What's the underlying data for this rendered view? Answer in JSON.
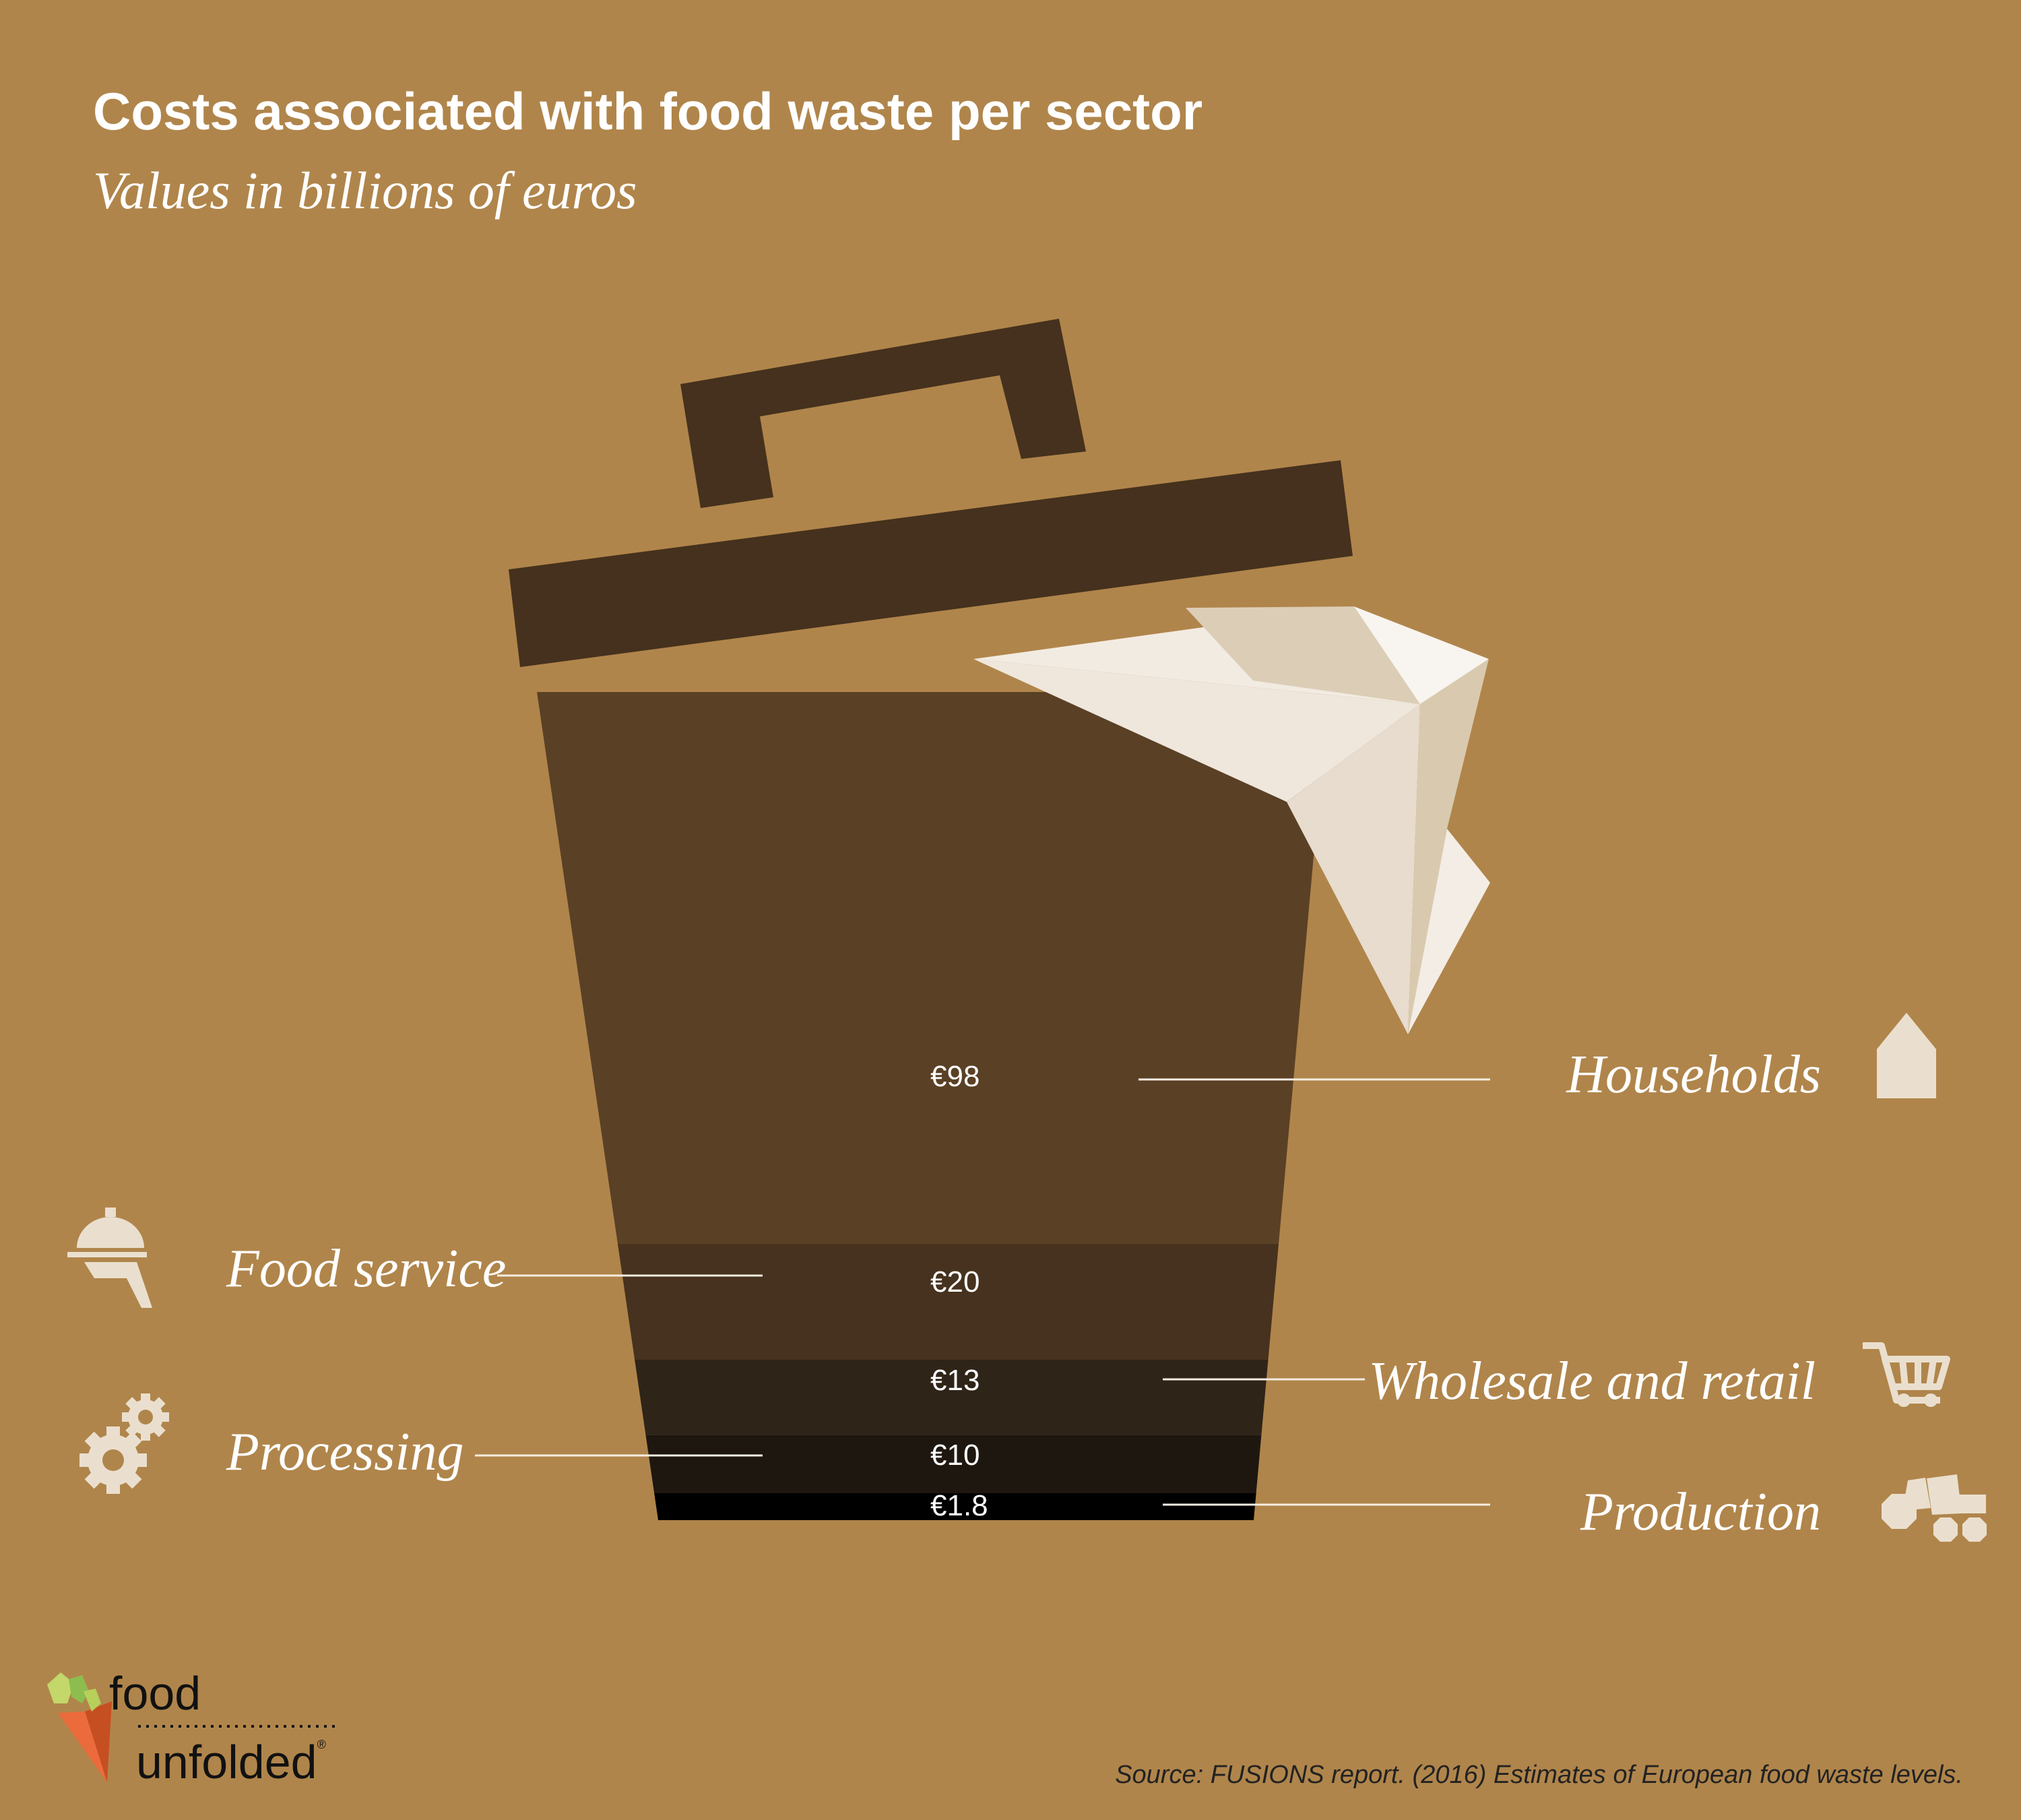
{
  "header": {
    "title": "Costs associated with food waste per sector",
    "subtitle": "Values in billions of euros"
  },
  "chart_data": {
    "type": "bar",
    "title": "Costs associated with food waste per sector",
    "subtitle": "Values in billions of euros",
    "categories": [
      "Households",
      "Food service",
      "Wholesale and retail",
      "Processing",
      "Production"
    ],
    "values": [
      98,
      20,
      13,
      10,
      1.8
    ],
    "value_labels": [
      "€98",
      "€20",
      "€13",
      "€10",
      "€1.8"
    ],
    "colors": [
      "#5a4025",
      "#46321e",
      "#2f2418",
      "#1e1710",
      "#000000"
    ],
    "icons": [
      "house-icon",
      "service-bell-icon",
      "shopping-cart-icon",
      "gears-icon",
      "tractor-icon"
    ]
  },
  "brand": {
    "line1": "food",
    "line2": "unfolded",
    "mark": "®"
  },
  "source": "Source: FUSIONS report. (2016) Estimates of European food waste levels.",
  "colors": {
    "background": "#b0854b",
    "lid": "#45311d",
    "paper": "#efe7dc",
    "icon": "#eadfce",
    "text": "#ffffff"
  }
}
